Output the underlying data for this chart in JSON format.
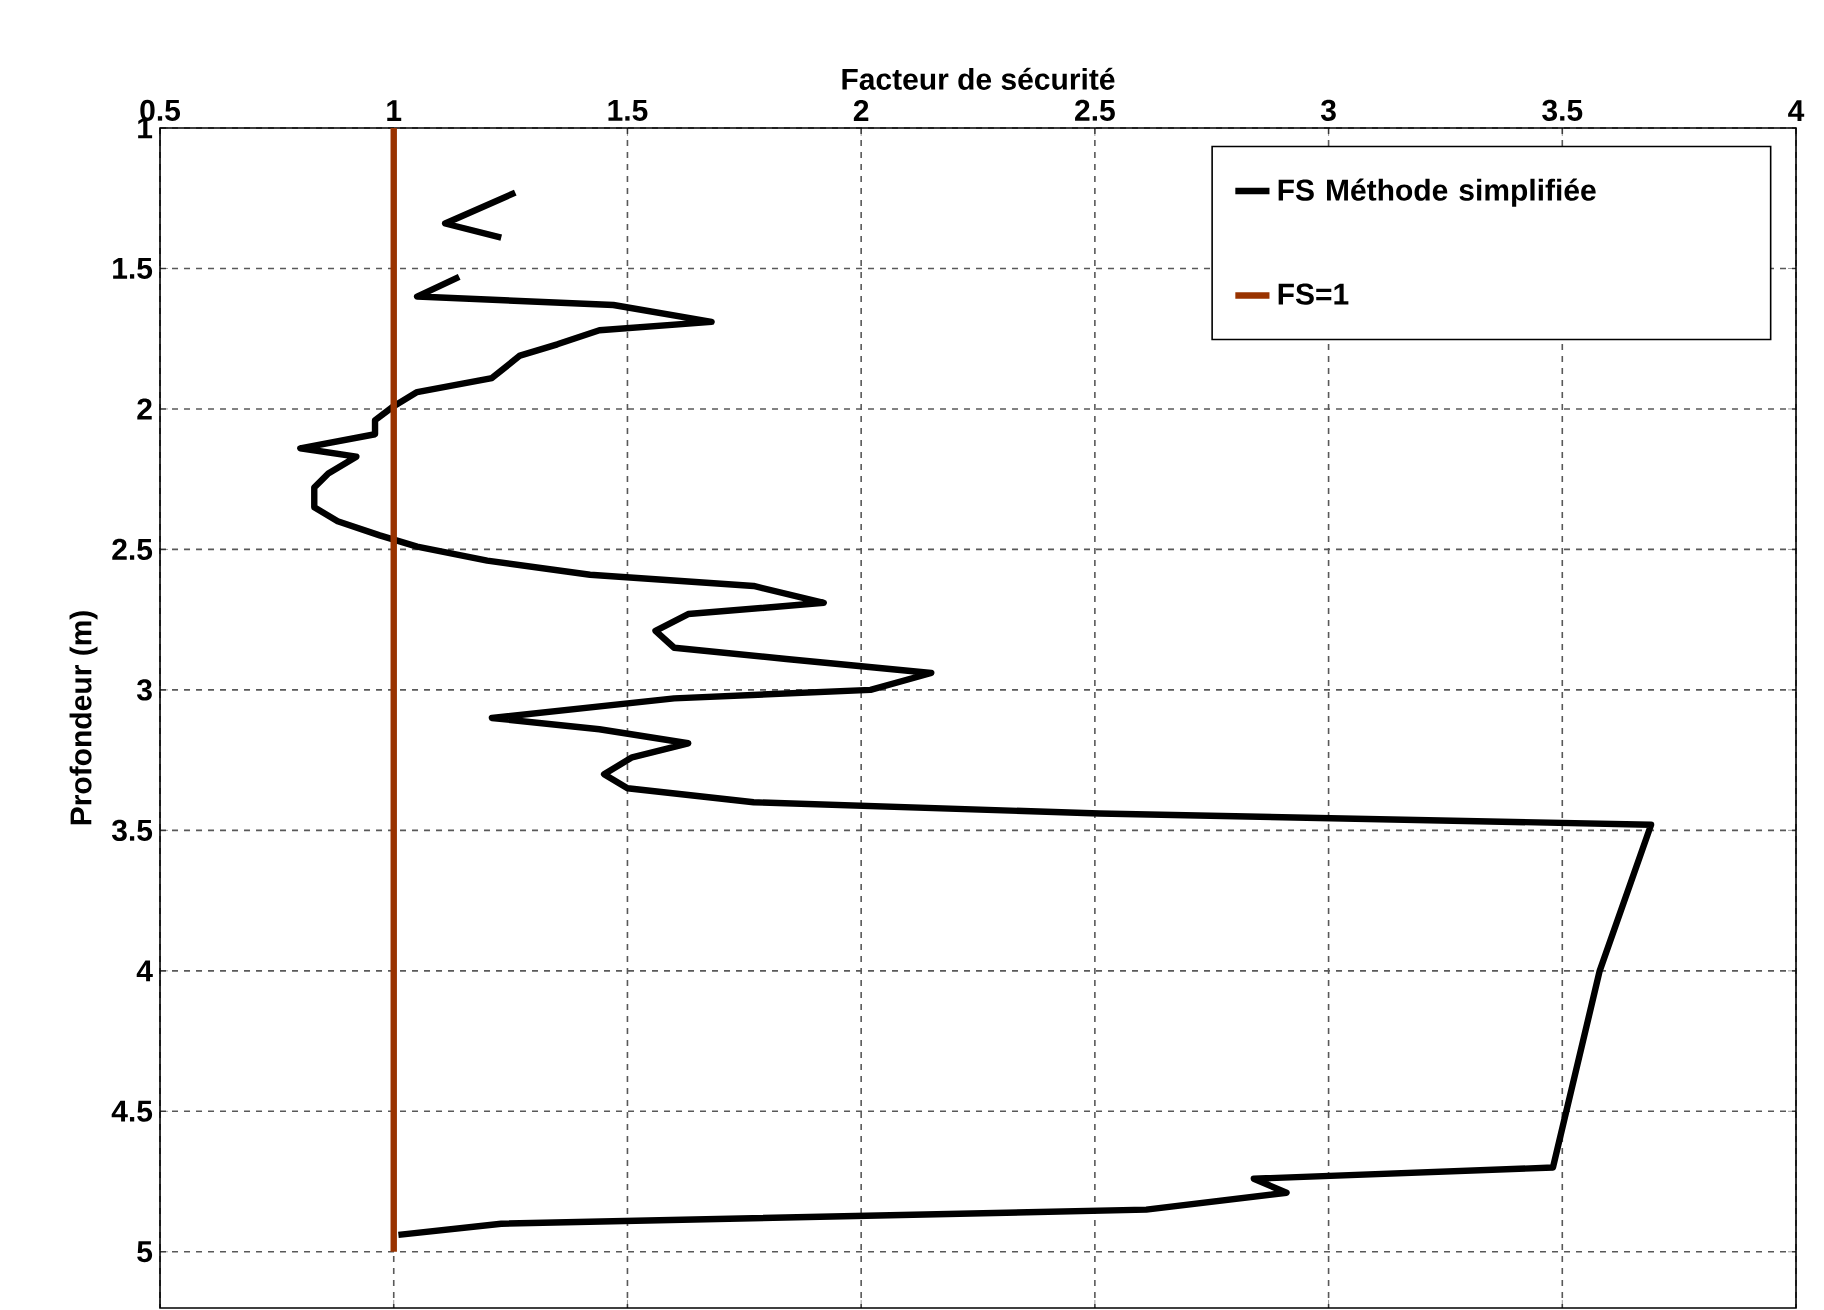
{
  "chart_data": {
    "type": "line",
    "xlabel": "Facteur de sécurité",
    "ylabel": "Profondeur (m)",
    "xlim": [
      0.5,
      4
    ],
    "xticks": [
      0.5,
      1,
      1.5,
      2,
      2.5,
      3,
      3.5,
      4
    ],
    "ylim": [
      5.2,
      1
    ],
    "yticks": [
      1,
      1.5,
      2,
      2.5,
      3,
      3.5,
      4,
      4.5,
      5
    ],
    "grid": true,
    "legend": "top right",
    "line_style": "solid",
    "series": [
      {
        "name": "FS Méthode simplifiée",
        "color": "#000000",
        "x": [
          1.26,
          1.11,
          1.23,
          null,
          1.14,
          1.05,
          1.47,
          1.68,
          1.44,
          1.35,
          1.27,
          1.21,
          1.05,
          1.0,
          0.96,
          0.96,
          0.8,
          0.92,
          0.86,
          0.83,
          0.83,
          0.88,
          0.97,
          1.05,
          1.2,
          1.42,
          1.77,
          1.92,
          1.63,
          1.56,
          1.6,
          1.84,
          2.15,
          2.02,
          1.6,
          1.21,
          1.44,
          1.63,
          1.51,
          1.45,
          1.5,
          1.77,
          2.51,
          3.69,
          3.58,
          3.48,
          2.84,
          2.91,
          2.61,
          1.23,
          1.01
        ],
        "values": [
          1.23,
          1.34,
          1.39,
          null,
          1.53,
          1.6,
          1.63,
          1.69,
          1.72,
          1.77,
          1.81,
          1.89,
          1.94,
          1.99,
          2.04,
          2.09,
          2.14,
          2.17,
          2.23,
          2.28,
          2.35,
          2.4,
          2.45,
          2.49,
          2.54,
          2.59,
          2.63,
          2.69,
          2.73,
          2.79,
          2.85,
          2.89,
          2.94,
          3.0,
          3.03,
          3.1,
          3.14,
          3.19,
          3.24,
          3.3,
          3.35,
          3.4,
          3.44,
          3.48,
          4.0,
          4.7,
          4.74,
          4.79,
          4.85,
          4.9,
          4.94
        ]
      },
      {
        "name": "FS=1",
        "color": "#993300",
        "x": [
          1,
          1
        ],
        "values": [
          1,
          5
        ]
      }
    ]
  }
}
